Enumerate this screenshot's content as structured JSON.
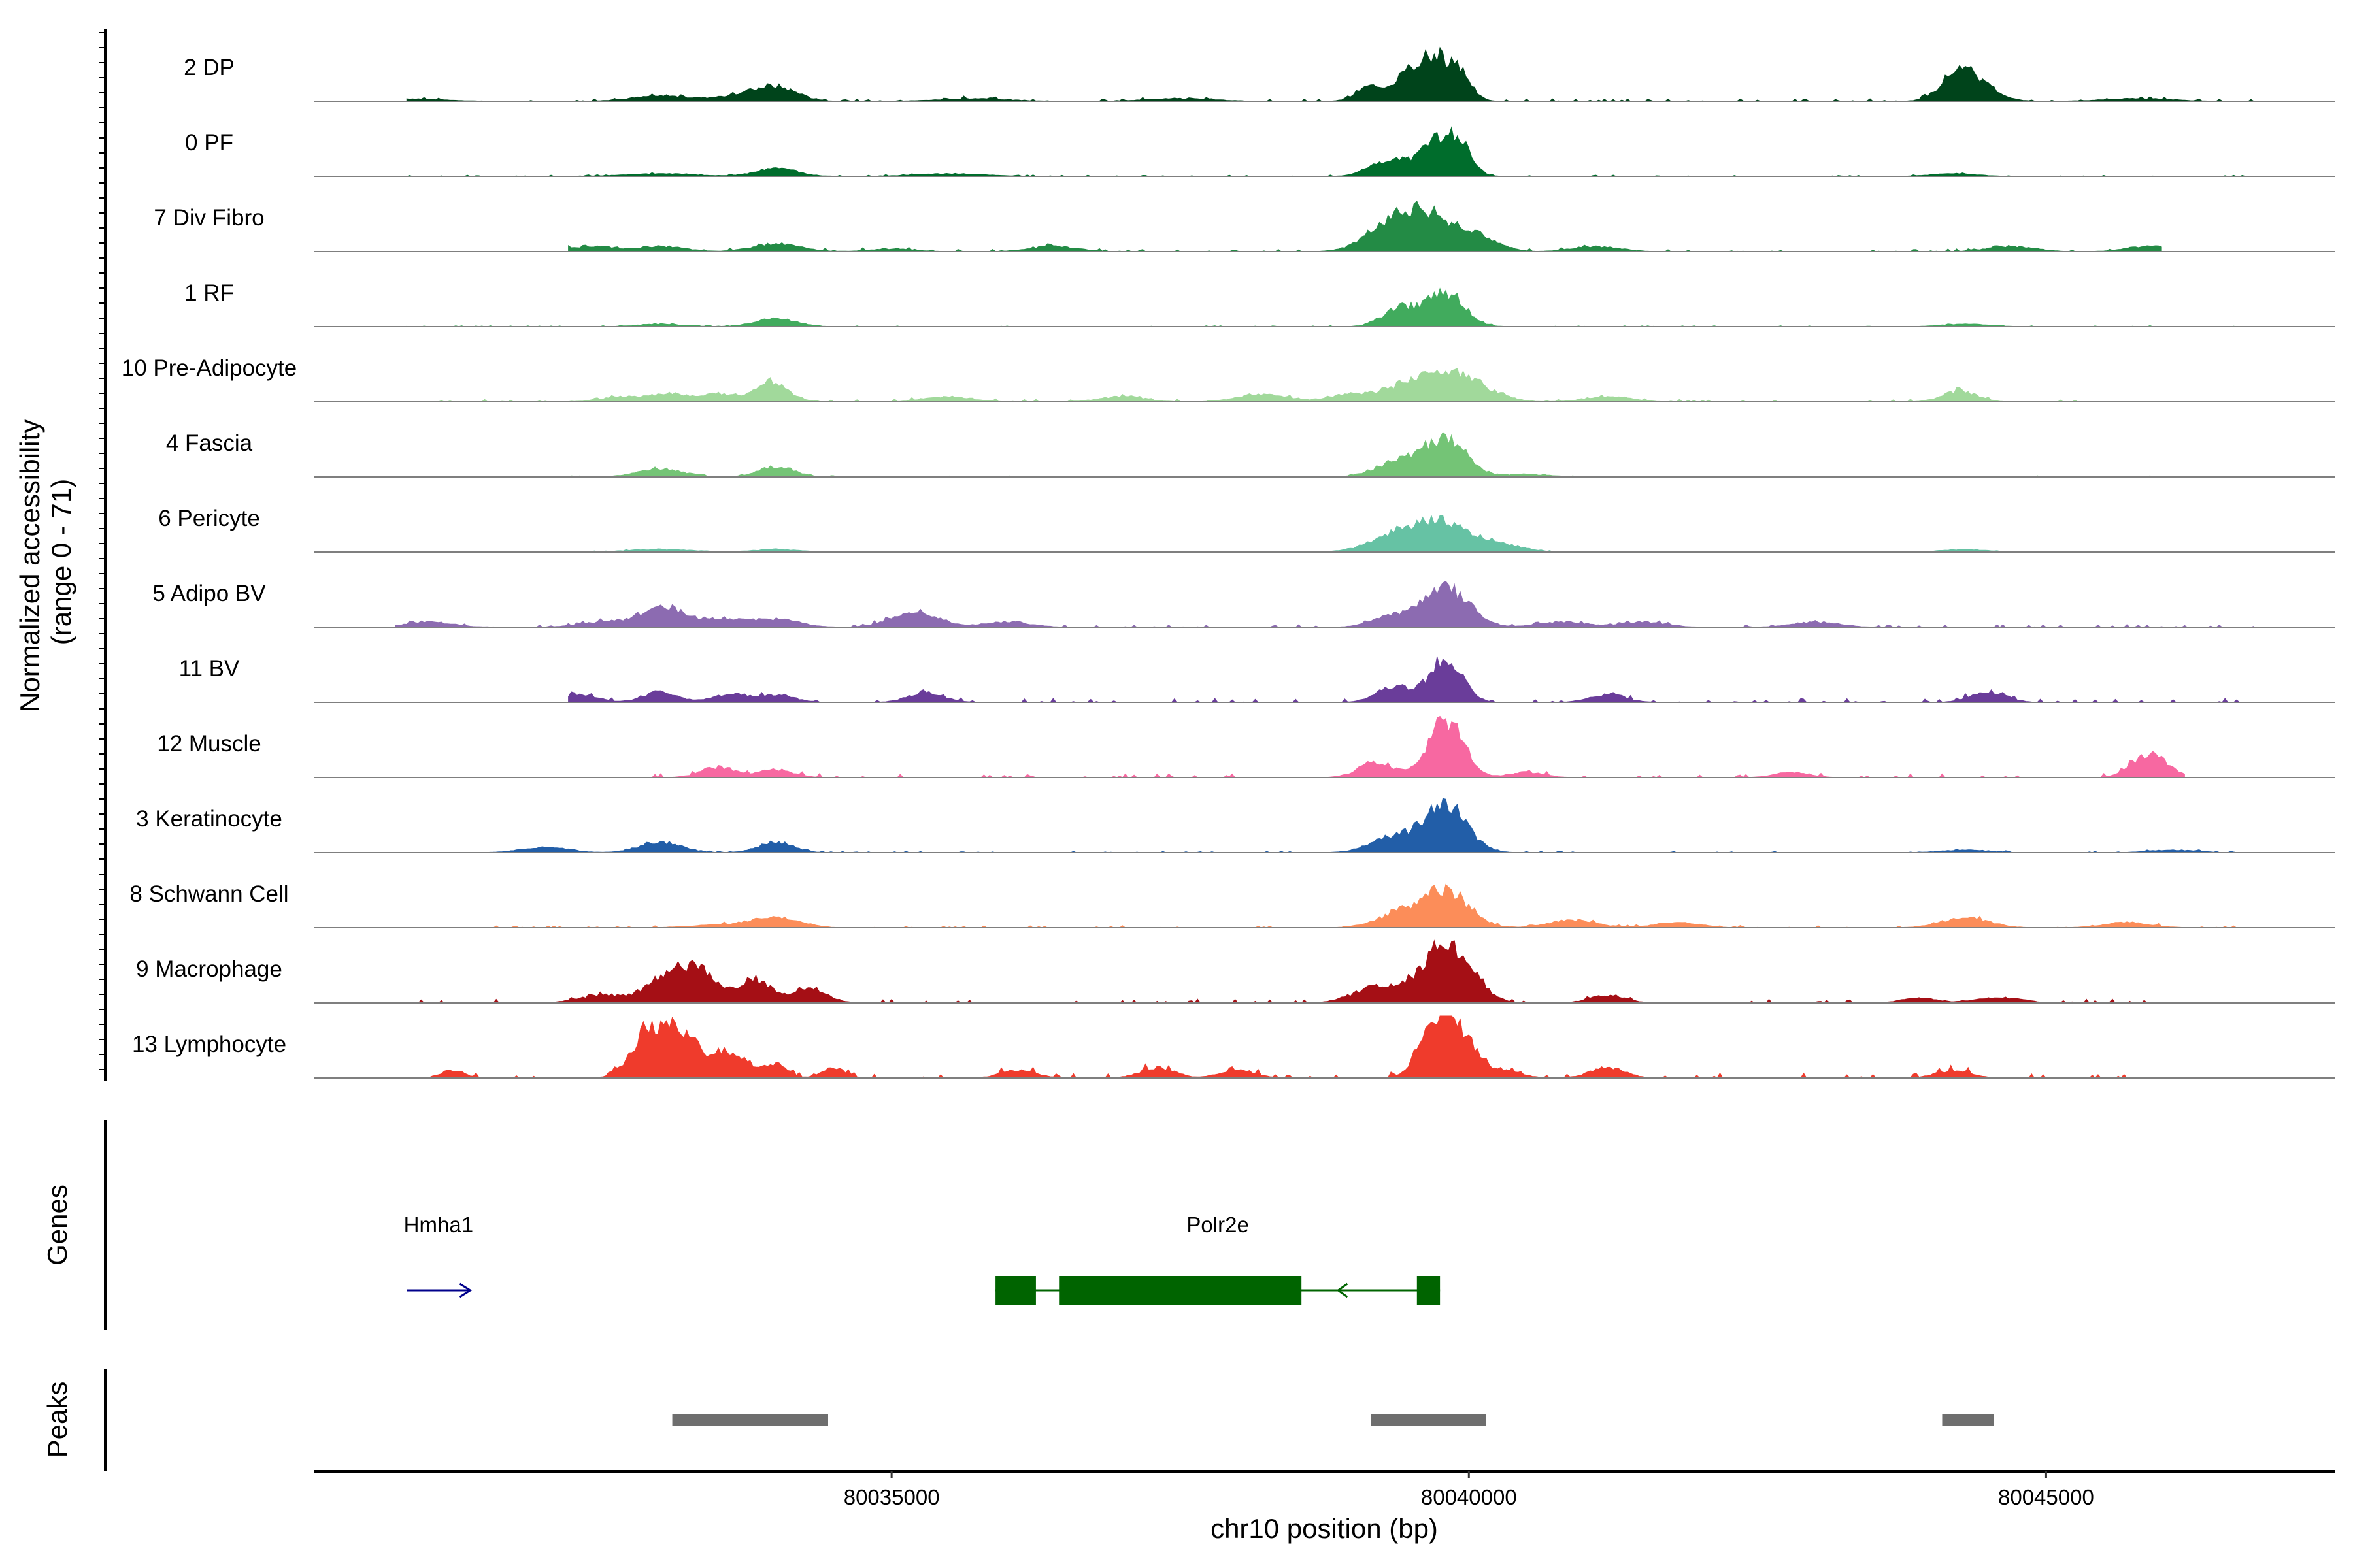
{
  "chart_data": {
    "type": "area",
    "chromosome": "chr10",
    "xlabel": "chr10 position (bp)",
    "ylabel_line1": "Normalized accessibility",
    "ylabel_line2": "(range 0 - 71)",
    "y_range": [
      0,
      71
    ],
    "xlim": [
      80030000,
      80047500
    ],
    "x_ticks": [
      80035000,
      80040000,
      80045000
    ],
    "x_tick_labels": [
      "80035000",
      "80040000",
      "80045000"
    ],
    "grid": false,
    "tracks": [
      {
        "name": "2 DP",
        "color": "#00441b",
        "peaks": [
          [
            80030800,
            300,
            1
          ],
          [
            80033000,
            250,
            2
          ],
          [
            80033700,
            230,
            2
          ],
          [
            80034000,
            180,
            5
          ],
          [
            80035700,
            300,
            1
          ],
          [
            80037500,
            300,
            1
          ],
          [
            80039150,
            120,
            6
          ],
          [
            80039500,
            130,
            10
          ],
          [
            80039750,
            140,
            15
          ],
          [
            80039950,
            90,
            6
          ],
          [
            80044250,
            150,
            12
          ],
          [
            80044500,
            150,
            3
          ],
          [
            80045800,
            300,
            1
          ]
        ],
        "noise": 1,
        "span": [
          80030800,
          80046800
        ]
      },
      {
        "name": "0 PF",
        "color": "#006d2c",
        "peaks": [
          [
            80033000,
            300,
            1
          ],
          [
            80034000,
            180,
            3
          ],
          [
            80035500,
            300,
            1
          ],
          [
            80039300,
            160,
            6
          ],
          [
            80039750,
            160,
            15
          ],
          [
            80039950,
            90,
            6
          ],
          [
            80044200,
            200,
            1
          ]
        ],
        "noise": 0.5,
        "span": [
          80030800,
          80046800
        ]
      },
      {
        "name": "7 Div Fibro",
        "color": "#238b45",
        "peaks": [
          [
            80032400,
            200,
            2
          ],
          [
            80033000,
            200,
            2
          ],
          [
            80034000,
            200,
            3
          ],
          [
            80035000,
            200,
            1
          ],
          [
            80036400,
            200,
            2
          ],
          [
            80039350,
            220,
            10
          ],
          [
            80039700,
            260,
            12
          ],
          [
            80040150,
            150,
            3
          ],
          [
            80041100,
            200,
            2
          ],
          [
            80044700,
            200,
            2
          ],
          [
            80045900,
            200,
            2
          ]
        ],
        "noise": 1,
        "span": [
          80032200,
          80046000
        ]
      },
      {
        "name": "1 RF",
        "color": "#41ab5d",
        "peaks": [
          [
            80033000,
            200,
            1
          ],
          [
            80034000,
            180,
            3
          ],
          [
            80039400,
            150,
            7
          ],
          [
            80039800,
            160,
            13
          ],
          [
            80044300,
            200,
            1
          ]
        ],
        "noise": 0.4,
        "span": [
          80030800,
          80046800
        ]
      },
      {
        "name": "10 Pre-Adipocyte",
        "color": "#a1d99b",
        "peaks": [
          [
            80032700,
            200,
            2
          ],
          [
            80033100,
            150,
            3
          ],
          [
            80033500,
            120,
            3
          ],
          [
            80033950,
            150,
            8
          ],
          [
            80035500,
            200,
            2
          ],
          [
            80037000,
            200,
            2
          ],
          [
            80038200,
            200,
            3
          ],
          [
            80039000,
            200,
            3
          ],
          [
            80039500,
            200,
            6
          ],
          [
            80039900,
            250,
            10
          ],
          [
            80041200,
            200,
            2
          ],
          [
            80044250,
            150,
            4
          ]
        ],
        "noise": 1,
        "span": [
          80031000,
          80045400
        ]
      },
      {
        "name": "4 Fascia",
        "color": "#74c476",
        "peaks": [
          [
            80033000,
            200,
            3
          ],
          [
            80034000,
            150,
            4
          ],
          [
            80039400,
            200,
            6
          ],
          [
            80039800,
            180,
            14
          ],
          [
            80040500,
            200,
            1
          ]
        ],
        "noise": 0.5,
        "span": [
          80031500,
          80046000
        ]
      },
      {
        "name": "6 Pericyte",
        "color": "#66c2a4",
        "peaks": [
          [
            80033000,
            300,
            1
          ],
          [
            80034000,
            200,
            1
          ],
          [
            80039400,
            250,
            6
          ],
          [
            80039800,
            250,
            10
          ],
          [
            80040300,
            200,
            2
          ],
          [
            80044300,
            200,
            1
          ]
        ],
        "noise": 0.3,
        "span": [
          80031500,
          80046000
        ]
      },
      {
        "name": "5 Adipo BV",
        "color": "#8c6bb1",
        "peaks": [
          [
            80031000,
            200,
            2
          ],
          [
            80032500,
            200,
            2
          ],
          [
            80033000,
            180,
            8
          ],
          [
            80033500,
            200,
            3
          ],
          [
            80034000,
            200,
            3
          ],
          [
            80035200,
            200,
            6
          ],
          [
            80036000,
            200,
            2
          ],
          [
            80039350,
            180,
            4
          ],
          [
            80039800,
            200,
            15
          ],
          [
            80040800,
            200,
            2
          ],
          [
            80041500,
            200,
            2
          ],
          [
            80043000,
            200,
            2
          ]
        ],
        "noise": 1,
        "span": [
          80030700,
          80046800
        ]
      },
      {
        "name": "11 BV",
        "color": "#6a3d9a",
        "peaks": [
          [
            80032300,
            150,
            3
          ],
          [
            80033000,
            150,
            4
          ],
          [
            80033600,
            150,
            3
          ],
          [
            80034000,
            150,
            3
          ],
          [
            80035300,
            150,
            4
          ],
          [
            80039350,
            150,
            6
          ],
          [
            80039800,
            140,
            17
          ],
          [
            80041200,
            150,
            3
          ],
          [
            80044500,
            150,
            4
          ]
        ],
        "noise": 1.5,
        "span": [
          80032200,
          80046800
        ]
      },
      {
        "name": "12 Muscle",
        "color": "#f768a1",
        "peaks": [
          [
            80033500,
            150,
            4
          ],
          [
            80034000,
            150,
            3
          ],
          [
            80039200,
            150,
            6
          ],
          [
            80039800,
            150,
            22
          ],
          [
            80040500,
            150,
            2
          ],
          [
            80042800,
            150,
            2
          ],
          [
            80045900,
            150,
            9
          ]
        ],
        "noise": 1.5,
        "span": [
          80032500,
          80046200
        ]
      },
      {
        "name": "3 Keratinocyte",
        "color": "#225ea8",
        "peaks": [
          [
            80032000,
            200,
            2
          ],
          [
            80033000,
            180,
            4
          ],
          [
            80034000,
            150,
            4
          ],
          [
            80039350,
            200,
            6
          ],
          [
            80039800,
            180,
            18
          ],
          [
            80044300,
            200,
            1
          ],
          [
            80046100,
            200,
            1
          ]
        ],
        "noise": 0.6,
        "span": [
          80031500,
          80046800
        ]
      },
      {
        "name": "8 Schwann Cell",
        "color": "#fc8d59",
        "peaks": [
          [
            80033500,
            250,
            1
          ],
          [
            80034000,
            200,
            4
          ],
          [
            80039400,
            200,
            5
          ],
          [
            80039800,
            200,
            14
          ],
          [
            80040900,
            200,
            3
          ],
          [
            80041800,
            200,
            2
          ],
          [
            80044300,
            200,
            4
          ],
          [
            80045700,
            200,
            2
          ]
        ],
        "noise": 0.8,
        "span": [
          80031500,
          80046800
        ]
      },
      {
        "name": "9 Macrophage",
        "color": "#a50f15",
        "peaks": [
          [
            80032500,
            200,
            3
          ],
          [
            80033000,
            150,
            8
          ],
          [
            80033300,
            150,
            14
          ],
          [
            80033800,
            150,
            9
          ],
          [
            80034300,
            150,
            5
          ],
          [
            80039200,
            200,
            6
          ],
          [
            80039750,
            180,
            20
          ],
          [
            80040000,
            150,
            8
          ],
          [
            80041200,
            150,
            3
          ],
          [
            80043900,
            150,
            2
          ],
          [
            80044600,
            200,
            2
          ]
        ],
        "noise": 1.5,
        "span": [
          80030800,
          80046000
        ]
      },
      {
        "name": "13 Lymphocyte",
        "color": "#ef3b2c",
        "peaks": [
          [
            80031200,
            100,
            3
          ],
          [
            80032900,
            150,
            18
          ],
          [
            80033200,
            130,
            16
          ],
          [
            80033600,
            150,
            10
          ],
          [
            80034000,
            100,
            5
          ],
          [
            80034500,
            100,
            4
          ],
          [
            80036100,
            150,
            3
          ],
          [
            80037300,
            150,
            4
          ],
          [
            80038000,
            150,
            3
          ],
          [
            80039700,
            130,
            22
          ],
          [
            80039950,
            130,
            15
          ],
          [
            80040300,
            150,
            3
          ],
          [
            80041200,
            150,
            4
          ],
          [
            80044200,
            150,
            3
          ]
        ],
        "noise": 2,
        "span": [
          80031000,
          80046000
        ]
      }
    ],
    "genes": [
      {
        "name": "Hmha1",
        "strand": "+",
        "color": "#00008b",
        "start": 80030800,
        "end": 80031350,
        "exons": []
      },
      {
        "name": "Polr2e",
        "strand": "-",
        "color": "#006400",
        "start": 80035900,
        "end": 80039750,
        "exons": [
          [
            80035900,
            80036250
          ],
          [
            80036450,
            80038550
          ],
          [
            80039550,
            80039750
          ]
        ]
      }
    ],
    "peak_regions": [
      [
        80033100,
        80034450
      ],
      [
        80039150,
        80040150
      ],
      [
        80044100,
        80044550
      ]
    ],
    "panels": {
      "genes": "Genes",
      "peaks": "Peaks"
    }
  }
}
